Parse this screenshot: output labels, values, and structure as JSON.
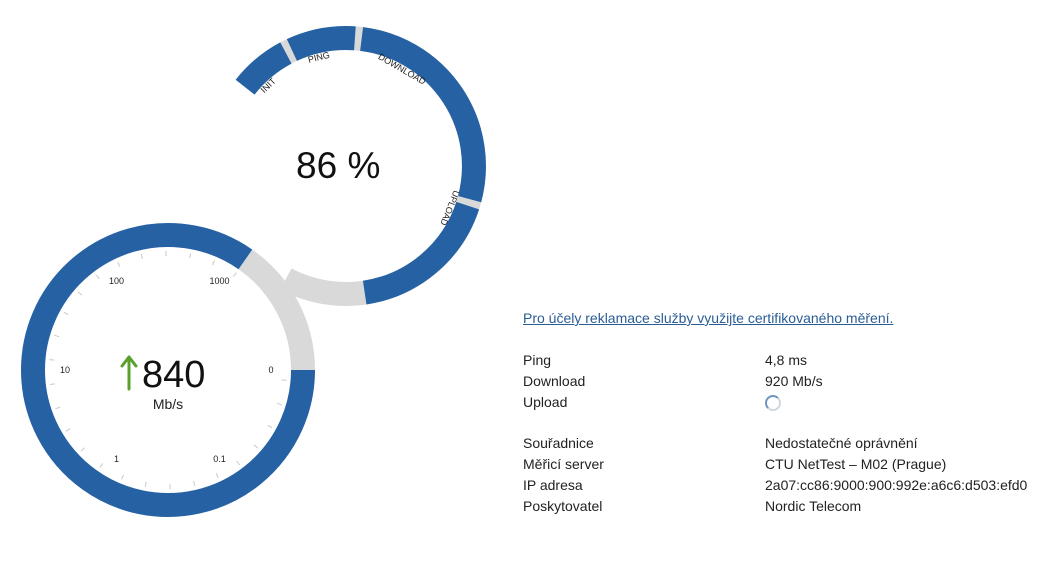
{
  "progress": {
    "value": "86",
    "percent_sign": "%",
    "fraction_complete": 0.86,
    "phases": [
      "INIT",
      "PING",
      "DOWNLOAD",
      "UPLOAD"
    ],
    "phase_color": "#2561a3",
    "track_color": "#d9d9d9"
  },
  "speed": {
    "value": "840",
    "unit": "Mb/s",
    "arrow_color": "#5aa02c",
    "scale_labels": [
      "0",
      "0.1",
      "1",
      "10",
      "100",
      "1000"
    ]
  },
  "claim_link": "Pro účely reklamace služby využijte certifikovaného měření.",
  "results": [
    {
      "label": "Ping",
      "value": "4,8 ms"
    },
    {
      "label": "Download",
      "value": "920 Mb/s"
    },
    {
      "label": "Upload",
      "value": "",
      "loading": true
    }
  ],
  "details": [
    {
      "label": "Souřadnice",
      "value": "Nedostatečné oprávnění"
    },
    {
      "label": "Měřicí server",
      "value": "CTU NetTest – M02 (Prague)"
    },
    {
      "label": "IP adresa",
      "value": "2a07:cc86:9000:900:992e:a6c6:d503:efd0"
    },
    {
      "label": "Poskytovatel",
      "value": "Nordic Telecom"
    }
  ]
}
